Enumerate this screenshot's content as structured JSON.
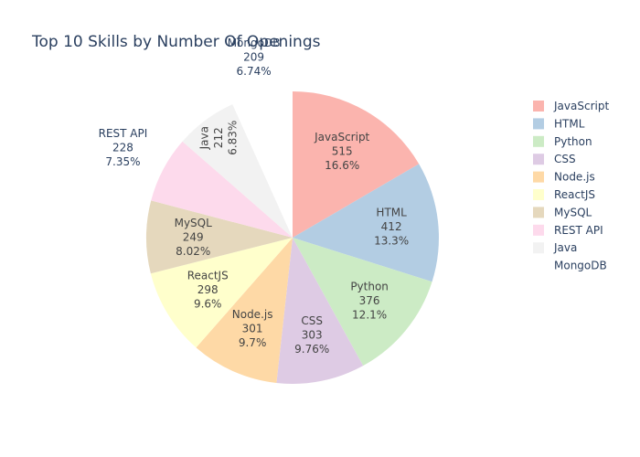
{
  "chart_data": {
    "type": "pie",
    "title": "Top 10 Skills by Number Of Openings",
    "legend_position": "right",
    "slices": [
      {
        "label": "JavaScript",
        "value": 515,
        "percent": "16.6%",
        "color": "#fbb4ae"
      },
      {
        "label": "HTML",
        "value": 412,
        "percent": "13.3%",
        "color": "#b3cde3"
      },
      {
        "label": "Python",
        "value": 376,
        "percent": "12.1%",
        "color": "#ccebc5"
      },
      {
        "label": "CSS",
        "value": 303,
        "percent": "9.76%",
        "color": "#decbe4"
      },
      {
        "label": "Node.js",
        "value": 301,
        "percent": "9.7%",
        "color": "#fed9a6"
      },
      {
        "label": "ReactJS",
        "value": 298,
        "percent": "9.6%",
        "color": "#ffffcc"
      },
      {
        "label": "MySQL",
        "value": 249,
        "percent": "8.02%",
        "color": "#e5d8bd"
      },
      {
        "label": "REST API",
        "value": 228,
        "percent": "7.35%",
        "color": "#fddaec"
      },
      {
        "label": "Java",
        "value": 212,
        "percent": "6.83%",
        "color": "#f2f2f2"
      },
      {
        "label": "MongoDB",
        "value": 209,
        "percent": "6.74%",
        "color": "#ffffff"
      }
    ]
  }
}
